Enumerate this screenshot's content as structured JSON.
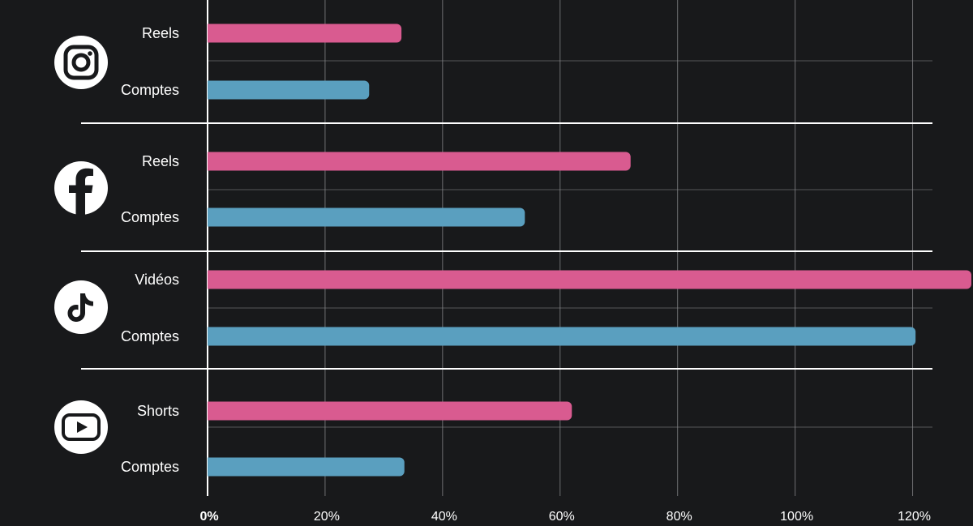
{
  "colors": {
    "background": "#18191b",
    "primary": "#d95b90",
    "secondary": "#5a9fbf",
    "grid": "#8a8b8e",
    "separator": "#ffffff",
    "text": "#ffffff"
  },
  "chart_data": {
    "type": "bar",
    "orientation": "horizontal",
    "title": "",
    "xlabel": "",
    "ylabel": "",
    "xlim": [
      0,
      130
    ],
    "grid": true,
    "xticks": [
      0,
      20,
      40,
      60,
      80,
      100,
      120
    ],
    "xtick_labels": [
      "0%",
      "20%",
      "40%",
      "60%",
      "80%",
      "100%",
      "120%"
    ],
    "groups": [
      {
        "platform": "Instagram",
        "icon": "instagram-icon",
        "bars": [
          {
            "label": "Reels",
            "value": 33,
            "series": "primary"
          },
          {
            "label": "Comptes",
            "value": 27.5,
            "series": "secondary"
          }
        ]
      },
      {
        "platform": "Facebook",
        "icon": "facebook-icon",
        "bars": [
          {
            "label": "Reels",
            "value": 72,
            "series": "primary"
          },
          {
            "label": "Comptes",
            "value": 54,
            "series": "secondary"
          }
        ]
      },
      {
        "platform": "TikTok",
        "icon": "tiktok-icon",
        "bars": [
          {
            "label": "Vidéos",
            "value": 130,
            "series": "primary"
          },
          {
            "label": "Comptes",
            "value": 120.5,
            "series": "secondary"
          }
        ]
      },
      {
        "platform": "YouTube",
        "icon": "youtube-icon",
        "bars": [
          {
            "label": "Shorts",
            "value": 62,
            "series": "primary"
          },
          {
            "label": "Comptes",
            "value": 33.5,
            "series": "secondary"
          }
        ]
      }
    ]
  }
}
